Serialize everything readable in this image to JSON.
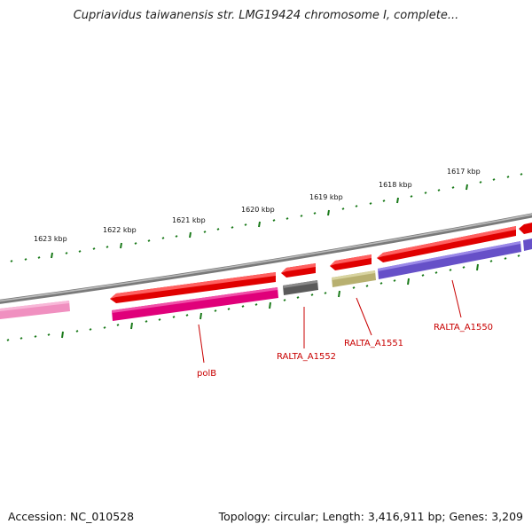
{
  "title": "Cupriavidus taiwanensis str. LMG19424 chromosome I, complete...",
  "footer": {
    "accession": "Accession: NC_010528",
    "summary": "Topology: circular; Length: 3,416,911 bp; Genes: 3,209"
  },
  "scale_labels": [
    "1617 kbp",
    "1618 kbp",
    "1619 kbp",
    "1620 kbp",
    "1621 kbp",
    "1622 kbp",
    "1623 kbp"
  ],
  "gene_labels": [
    "polB",
    "RALTA_A1552",
    "RALTA_A1551",
    "RALTA_A1550"
  ],
  "colors": {
    "backbone": "#8a8a8a",
    "tick": "#1a7a1a",
    "cds": "#e00000",
    "label": "#c80000",
    "polB": "#e0007a",
    "RALTA_A1552": "#5a5a5a",
    "RALTA_A1551": "#b8b070",
    "RALTA_A1550": "#6650c8",
    "left_feature": "#f090c0"
  }
}
